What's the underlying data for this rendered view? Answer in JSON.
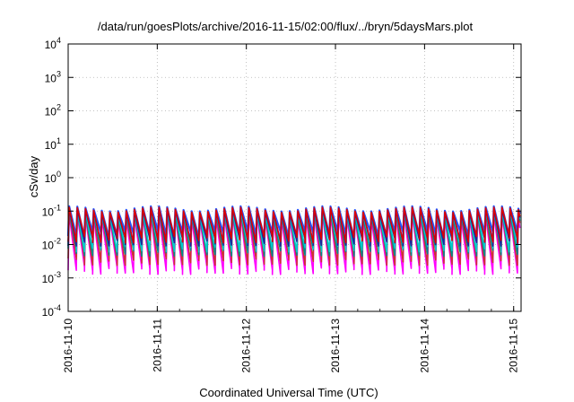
{
  "chart_data": {
    "type": "line",
    "title": "/data/run/goesPlots/archive/2016-11-15/02:00/flux/../bryn/5daysMars.plot",
    "xlabel": "Coordinated Universal Time (UTC)",
    "ylabel": "cSv/day",
    "yscale": "log",
    "ylim": [
      0.0001,
      10000
    ],
    "xlim": [
      "2016-11-10T00:00",
      "2016-11-15T02:00"
    ],
    "y_ticks": [
      {
        "exp": "-4",
        "value": 0.0001
      },
      {
        "exp": "-3",
        "value": 0.001
      },
      {
        "exp": "-2",
        "value": 0.01
      },
      {
        "exp": "-1",
        "value": 0.1
      },
      {
        "exp": "0",
        "value": 1
      },
      {
        "exp": "1",
        "value": 10
      },
      {
        "exp": "2",
        "value": 100
      },
      {
        "exp": "3",
        "value": 1000
      },
      {
        "exp": "4",
        "value": 10000
      }
    ],
    "x_ticks": [
      {
        "label": "2016-11-10",
        "value": "2016-11-10T00:00"
      },
      {
        "label": "2016-11-11",
        "value": "2016-11-11T00:00"
      },
      {
        "label": "2016-11-12",
        "value": "2016-11-12T00:00"
      },
      {
        "label": "2016-11-13",
        "value": "2016-11-13T00:00"
      },
      {
        "label": "2016-11-14",
        "value": "2016-11-14T00:00"
      },
      {
        "label": "2016-11-15",
        "value": "2016-11-15T00:00"
      }
    ],
    "grid": true,
    "legend": "none",
    "cycle_hours": 2.2,
    "series": [
      {
        "color": "#ff00ff",
        "peak": 0.08,
        "trough": 0.0017
      },
      {
        "color": "#cc3333",
        "peak": 0.1,
        "trough": 0.0032
      },
      {
        "color": "#008b8b",
        "peak": 0.1,
        "trough": 0.006
      },
      {
        "color": "#00cccc",
        "peak": 0.11,
        "trough": 0.008
      },
      {
        "color": "#2255ff",
        "peak": 0.14,
        "trough": 0.02
      },
      {
        "color": "#222299",
        "peak": 0.12,
        "trough": 0.012
      },
      {
        "color": "#dd0000",
        "peak": 0.13,
        "trough": 0.015
      }
    ]
  }
}
